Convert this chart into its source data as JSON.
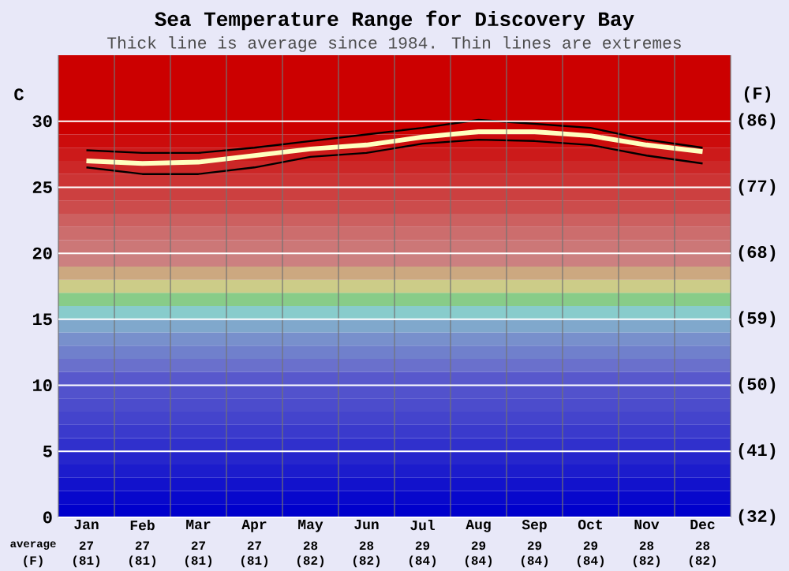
{
  "chart_data": {
    "type": "line",
    "title": "Sea Temperature Range for Discovery Bay",
    "subtitle": "Thick line is average since 1984. Thin lines are extremes",
    "ylabel": "C",
    "y2label": "(F)",
    "categories": [
      "Jan",
      "Feb",
      "Mar",
      "Apr",
      "May",
      "Jun",
      "Jul",
      "Aug",
      "Sep",
      "Oct",
      "Nov",
      "Dec"
    ],
    "series": [
      {
        "color": "#000000",
        "values": [
          27.8,
          27.6,
          27.6,
          28.0,
          28.5,
          29.0,
          29.5,
          30.1,
          29.8,
          29.5,
          28.6,
          28.0
        ]
      },
      {
        "color": "#000000",
        "values": [
          26.5,
          26.0,
          26.0,
          26.5,
          27.3,
          27.6,
          28.3,
          28.6,
          28.5,
          28.2,
          27.4,
          26.8
        ]
      },
      {
        "color": "#ffffc0",
        "values": [
          27.0,
          26.8,
          26.9,
          27.4,
          27.9,
          28.2,
          28.8,
          29.2,
          29.2,
          28.9,
          28.2,
          27.7
        ],
        "value_labels": [
          "27",
          "27",
          "27",
          "27",
          "28",
          "28",
          "29",
          "29",
          "29",
          "29",
          "28",
          "28"
        ]
      }
    ],
    "annotations": [
      "average",
      "(F)",
      "(81)",
      "(81)",
      "(81)",
      "(81)",
      "(82)",
      "(82)",
      "(84)",
      "(84)",
      "(84)",
      "(84)",
      "(82)",
      "(82)"
    ],
    "ylim": [
      0,
      35
    ],
    "yticks": [
      0,
      5,
      10,
      15,
      20,
      25,
      30
    ],
    "y2lim": [
      32,
      95
    ],
    "y2ticks": [
      {
        "value": 32,
        "label": "(32)"
      },
      {
        "value": 41,
        "label": "(41)"
      },
      {
        "value": 50,
        "label": "(50)"
      },
      {
        "value": 59,
        "label": "(59)"
      },
      {
        "value": 68,
        "label": "(68)"
      },
      {
        "value": 77,
        "label": "(77)"
      },
      {
        "value": 86,
        "label": "(86)"
      }
    ],
    "grid": true,
    "bands": [
      {
        "axis": "y",
        "from": 0,
        "to": 1,
        "color": "#0000cc"
      },
      {
        "axis": "y",
        "from": 1,
        "to": 2,
        "color": "#0808cc"
      },
      {
        "axis": "y",
        "from": 2,
        "to": 3,
        "color": "#1212cc"
      },
      {
        "axis": "y",
        "from": 3,
        "to": 4,
        "color": "#1c1ccc"
      },
      {
        "axis": "y",
        "from": 4,
        "to": 5,
        "color": "#2626cc"
      },
      {
        "axis": "y",
        "from": 5,
        "to": 6,
        "color": "#3030cc"
      },
      {
        "axis": "y",
        "from": 6,
        "to": 7,
        "color": "#3a3acc"
      },
      {
        "axis": "y",
        "from": 7,
        "to": 8,
        "color": "#4444cc"
      },
      {
        "axis": "y",
        "from": 8,
        "to": 9,
        "color": "#4c4ccc"
      },
      {
        "axis": "y",
        "from": 9,
        "to": 10,
        "color": "#5252cc"
      },
      {
        "axis": "y",
        "from": 10,
        "to": 11,
        "color": "#5858cc"
      },
      {
        "axis": "y",
        "from": 11,
        "to": 12,
        "color": "#6a70cc"
      },
      {
        "axis": "y",
        "from": 12,
        "to": 13,
        "color": "#7080cc"
      },
      {
        "axis": "y",
        "from": 13,
        "to": 14,
        "color": "#7890cc"
      },
      {
        "axis": "y",
        "from": 14,
        "to": 15,
        "color": "#80a8cc"
      },
      {
        "axis": "y",
        "from": 15,
        "to": 16,
        "color": "#88cccc"
      },
      {
        "axis": "y",
        "from": 16,
        "to": 17,
        "color": "#88cc88"
      },
      {
        "axis": "y",
        "from": 17,
        "to": 18,
        "color": "#cccc88"
      },
      {
        "axis": "y",
        "from": 18,
        "to": 19,
        "color": "#cca880"
      },
      {
        "axis": "y",
        "from": 19,
        "to": 20,
        "color": "#cc8080"
      },
      {
        "axis": "y",
        "from": 20,
        "to": 21,
        "color": "#cc7777"
      },
      {
        "axis": "y",
        "from": 21,
        "to": 22,
        "color": "#cc6d6d"
      },
      {
        "axis": "y",
        "from": 22,
        "to": 23,
        "color": "#cc6060"
      },
      {
        "axis": "y",
        "from": 23,
        "to": 24,
        "color": "#cc4c4c"
      },
      {
        "axis": "y",
        "from": 24,
        "to": 25,
        "color": "#cc4040"
      },
      {
        "axis": "y",
        "from": 25,
        "to": 26,
        "color": "#cc3434"
      },
      {
        "axis": "y",
        "from": 26,
        "to": 27,
        "color": "#cc2727"
      },
      {
        "axis": "y",
        "from": 27,
        "to": 28,
        "color": "#cc1a1a"
      },
      {
        "axis": "y",
        "from": 28,
        "to": 29,
        "color": "#cc0c0c"
      },
      {
        "axis": "y",
        "from": 29,
        "to": 35,
        "color": "#cc0000"
      }
    ]
  }
}
